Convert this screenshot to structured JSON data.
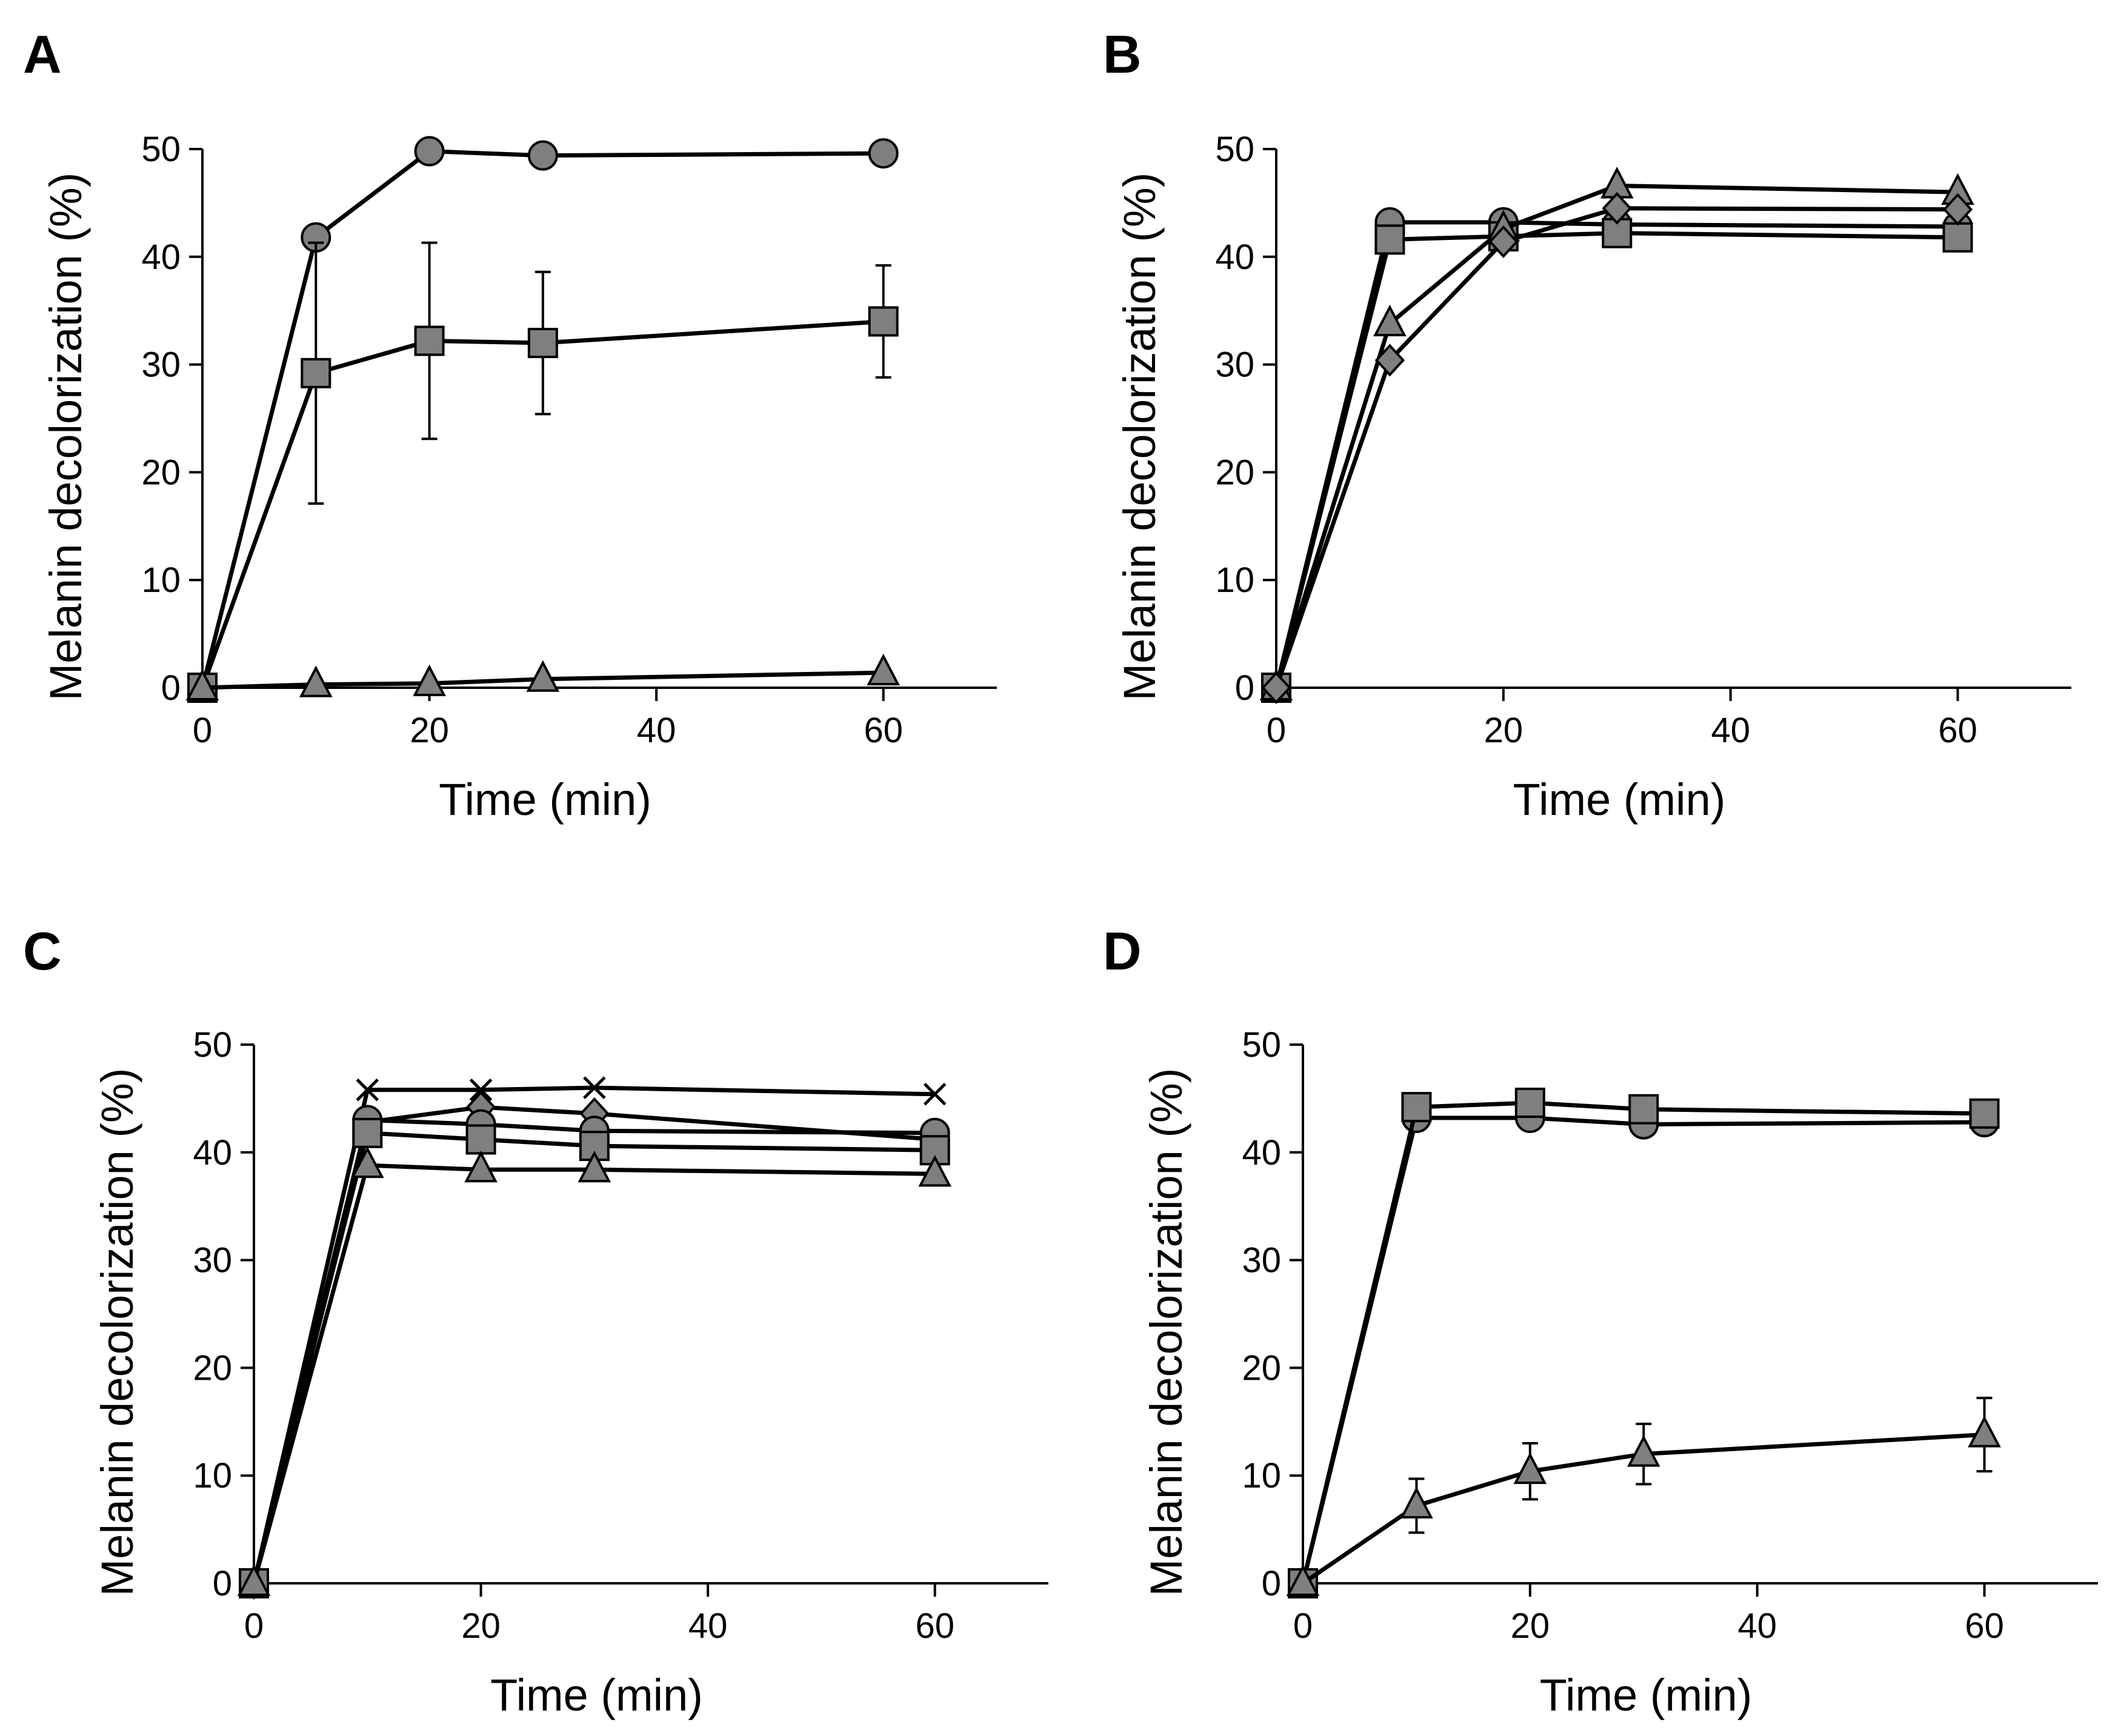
{
  "figure": {
    "background": "#ffffff",
    "marker_fill": "#7f7f7f",
    "line_color": "#000000"
  },
  "chart_data": [
    {
      "panel": "A",
      "type": "line",
      "xlabel": "Time (min)",
      "ylabel": "Melanin decolorization (%)",
      "xlim": [
        0,
        70
      ],
      "ylim": [
        0,
        50
      ],
      "xticks": [
        0,
        20,
        40,
        60
      ],
      "yticks": [
        0,
        10,
        20,
        30,
        40,
        50
      ],
      "grid": false,
      "legend": "none",
      "x": [
        0,
        10,
        20,
        30,
        60
      ],
      "series": [
        {
          "name": "circle",
          "marker": "circle",
          "values": [
            0,
            41.8,
            49.8,
            49.4,
            49.6
          ]
        },
        {
          "name": "square",
          "marker": "square",
          "values": [
            0,
            29.2,
            32.2,
            32.0,
            34.0
          ],
          "error": [
            0,
            12.1,
            9.1,
            6.6,
            5.2
          ]
        },
        {
          "name": "triangle",
          "marker": "triangle",
          "values": [
            0,
            0.3,
            0.4,
            0.8,
            1.4
          ]
        }
      ]
    },
    {
      "panel": "B",
      "type": "line",
      "xlabel": "Time (min)",
      "ylabel": "Melanin decolorization (%)",
      "xlim": [
        0,
        70
      ],
      "ylim": [
        0,
        50
      ],
      "xticks": [
        0,
        20,
        40,
        60
      ],
      "yticks": [
        0,
        10,
        20,
        30,
        40,
        50
      ],
      "grid": false,
      "legend": "none",
      "x": [
        0,
        10,
        20,
        30,
        60
      ],
      "series": [
        {
          "name": "circle",
          "marker": "circle",
          "values": [
            0,
            43.2,
            43.2,
            43.0,
            42.8
          ]
        },
        {
          "name": "square",
          "marker": "square",
          "values": [
            0,
            41.6,
            41.9,
            42.2,
            41.8
          ]
        },
        {
          "name": "triangle",
          "marker": "triangle",
          "values": [
            0,
            33.8,
            42.6,
            46.6,
            46.0
          ]
        },
        {
          "name": "diamond",
          "marker": "diamond",
          "values": [
            0,
            30.4,
            41.4,
            44.5,
            44.4
          ]
        }
      ]
    },
    {
      "panel": "C",
      "type": "line",
      "xlabel": "Time (min)",
      "ylabel": "Melanin decolorization (%)",
      "xlim": [
        0,
        70
      ],
      "ylim": [
        0,
        50
      ],
      "xticks": [
        0,
        20,
        40,
        60
      ],
      "yticks": [
        0,
        10,
        20,
        30,
        40,
        50
      ],
      "grid": false,
      "legend": "none",
      "x": [
        0,
        10,
        20,
        30,
        60
      ],
      "series": [
        {
          "name": "cross",
          "marker": "cross",
          "values": [
            0,
            45.8,
            45.8,
            46.0,
            45.4
          ]
        },
        {
          "name": "diamond",
          "marker": "diamond",
          "values": [
            0,
            42.8,
            44.2,
            43.6,
            41.2
          ]
        },
        {
          "name": "circle",
          "marker": "circle",
          "values": [
            0,
            43.0,
            42.6,
            42.0,
            41.8
          ]
        },
        {
          "name": "square",
          "marker": "square",
          "values": [
            0,
            41.8,
            41.2,
            40.6,
            40.2
          ]
        },
        {
          "name": "triangle",
          "marker": "triangle",
          "values": [
            0,
            38.8,
            38.4,
            38.4,
            38.0
          ]
        }
      ]
    },
    {
      "panel": "D",
      "type": "line",
      "xlabel": "Time (min)",
      "ylabel": "Melanin decolorization (%)",
      "xlim": [
        0,
        70
      ],
      "ylim": [
        0,
        50
      ],
      "xticks": [
        0,
        20,
        40,
        60
      ],
      "yticks": [
        0,
        10,
        20,
        30,
        40,
        50
      ],
      "grid": false,
      "legend": "none",
      "x": [
        0,
        10,
        20,
        30,
        60
      ],
      "series": [
        {
          "name": "circle",
          "marker": "circle",
          "values": [
            0,
            43.2,
            43.2,
            42.6,
            42.8
          ]
        },
        {
          "name": "square",
          "marker": "square",
          "values": [
            0,
            44.2,
            44.6,
            44.0,
            43.6
          ]
        },
        {
          "name": "triangle",
          "marker": "triangle",
          "values": [
            0,
            7.2,
            10.4,
            12.0,
            13.8
          ],
          "error": [
            0,
            2.5,
            2.6,
            2.8,
            3.4
          ]
        }
      ]
    }
  ]
}
